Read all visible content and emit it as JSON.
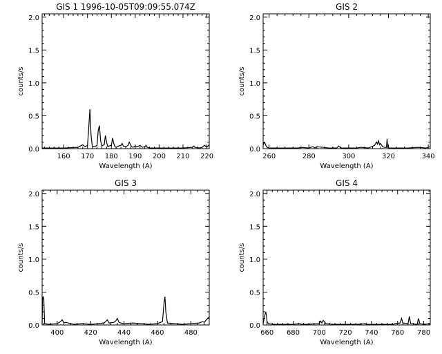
{
  "chart_data": [
    {
      "type": "line",
      "title": "GIS 1 1996-10-05T09:09:55.074Z",
      "xlabel": "Wavelength (A)",
      "ylabel": "counts/s",
      "xlim": [
        151,
        221
      ],
      "ylim": [
        0,
        2.05
      ],
      "xticks": [
        160,
        170,
        180,
        190,
        200,
        210,
        220
      ],
      "yticks": [
        0.0,
        0.5,
        1.0,
        1.5,
        2.0
      ],
      "ytick_labels": [
        "0.0",
        "0.5",
        "1.0",
        "1.5",
        "2.0"
      ],
      "grid": false,
      "series": [
        {
          "x": [
            151,
            160,
            166,
            167,
            168,
            169,
            170,
            170.5,
            171,
            171.5,
            172,
            173,
            174,
            174.5,
            175,
            175.5,
            176,
            177,
            177.5,
            178,
            178.5,
            179,
            180,
            180.5,
            181,
            181.5,
            182,
            183,
            184,
            184.5,
            185,
            186,
            187,
            187.5,
            188,
            188.5,
            189,
            190,
            191,
            192,
            193,
            194,
            194.5,
            195,
            196,
            200,
            205,
            210,
            214,
            214.5,
            215,
            217,
            218,
            219,
            220,
            221
          ],
          "y": [
            0.01,
            0.01,
            0.02,
            0.04,
            0.06,
            0.03,
            0.05,
            0.3,
            0.6,
            0.2,
            0.04,
            0.03,
            0.05,
            0.28,
            0.35,
            0.12,
            0.04,
            0.06,
            0.2,
            0.1,
            0.03,
            0.04,
            0.05,
            0.16,
            0.08,
            0.03,
            0.02,
            0.04,
            0.05,
            0.08,
            0.04,
            0.03,
            0.05,
            0.1,
            0.06,
            0.03,
            0.02,
            0.04,
            0.03,
            0.05,
            0.02,
            0.03,
            0.05,
            0.02,
            0.01,
            0.01,
            0.01,
            0.01,
            0.02,
            0.04,
            0.02,
            0.01,
            0.02,
            0.05,
            0.02,
            0.06
          ]
        }
      ]
    },
    {
      "type": "line",
      "title": "GIS 2",
      "xlabel": "Wavelength (A)",
      "ylabel": "counts/s",
      "xlim": [
        257,
        341
      ],
      "ylim": [
        0,
        2.05
      ],
      "xticks": [
        260,
        280,
        300,
        320,
        340
      ],
      "yticks": [
        0.0,
        0.5,
        1.0,
        1.5,
        2.0
      ],
      "ytick_labels": [
        "0.0",
        "0.5",
        "1.0",
        "1.5",
        "2.0"
      ],
      "grid": false,
      "series": [
        {
          "x": [
            257,
            257.5,
            258,
            258.5,
            259,
            260,
            262,
            270,
            275,
            276,
            280,
            282,
            283,
            284,
            290,
            294,
            295,
            296,
            300,
            304,
            306,
            310,
            313,
            314,
            314.5,
            315,
            315.5,
            316,
            317,
            318,
            319,
            319.3,
            319.6,
            320,
            325,
            330,
            335,
            339,
            340,
            341
          ],
          "y": [
            0.05,
            0.1,
            0.08,
            0.04,
            0.02,
            0.01,
            0.01,
            0.01,
            0.01,
            0.02,
            0.01,
            0.03,
            0.01,
            0.03,
            0.01,
            0.01,
            0.04,
            0.01,
            0.01,
            0.01,
            0.02,
            0.01,
            0.05,
            0.1,
            0.07,
            0.12,
            0.06,
            0.08,
            0.03,
            0.02,
            0.02,
            0.15,
            0.02,
            0.01,
            0.01,
            0.01,
            0.02,
            0.01,
            0.02,
            0.03
          ]
        }
      ]
    },
    {
      "type": "line",
      "title": "GIS 3",
      "xlabel": "Wavelength (A)",
      "ylabel": "counts/s",
      "xlim": [
        391,
        491
      ],
      "ylim": [
        0,
        2.05
      ],
      "xticks": [
        400,
        420,
        440,
        460,
        480
      ],
      "yticks": [
        0.0,
        0.5,
        1.0,
        1.5,
        2.0
      ],
      "ytick_labels": [
        "0.0",
        "0.5",
        "1.0",
        "1.5",
        "2.0"
      ],
      "grid": false,
      "series": [
        {
          "x": [
            391,
            391.3,
            391.6,
            392,
            392.5,
            395,
            400,
            402,
            403,
            404,
            405,
            410,
            415,
            420,
            425,
            428,
            429,
            430,
            431,
            434,
            435,
            436,
            437,
            438,
            440,
            445,
            450,
            455,
            460,
            463,
            464,
            464.5,
            465,
            466,
            470,
            475,
            480,
            485,
            487,
            488,
            489,
            490,
            491
          ],
          "y": [
            0.02,
            0.42,
            0.43,
            0.4,
            0.02,
            0.01,
            0.02,
            0.05,
            0.08,
            0.03,
            0.04,
            0.01,
            0.02,
            0.01,
            0.02,
            0.03,
            0.05,
            0.08,
            0.03,
            0.04,
            0.06,
            0.1,
            0.04,
            0.03,
            0.02,
            0.03,
            0.02,
            0.01,
            0.02,
            0.05,
            0.35,
            0.43,
            0.2,
            0.03,
            0.02,
            0.01,
            0.02,
            0.03,
            0.05,
            0.04,
            0.07,
            0.1,
            0.12
          ]
        }
      ]
    },
    {
      "type": "line",
      "title": "GIS 4",
      "xlabel": "Wavelength (A)",
      "ylabel": "counts/s",
      "xlim": [
        657,
        785
      ],
      "ylim": [
        0,
        2.05
      ],
      "xticks": [
        660,
        680,
        700,
        720,
        740,
        760,
        780
      ],
      "yticks": [
        0.0,
        0.5,
        1.0,
        1.5,
        2.0
      ],
      "ytick_labels": [
        "0.0",
        "0.5",
        "1.0",
        "1.5",
        "2.0"
      ],
      "grid": false,
      "series": [
        {
          "x": [
            657,
            658,
            659,
            659.5,
            660,
            661,
            665,
            670,
            680,
            685,
            686,
            690,
            700,
            701,
            702,
            703,
            704,
            705,
            710,
            720,
            730,
            735,
            736,
            740,
            750,
            757,
            758,
            762,
            763,
            764,
            768,
            769,
            770,
            775,
            776,
            777,
            780,
            785
          ],
          "y": [
            0.02,
            0.12,
            0.2,
            0.15,
            0.05,
            0.02,
            0.01,
            0.01,
            0.01,
            0.02,
            0.01,
            0.01,
            0.02,
            0.06,
            0.03,
            0.07,
            0.05,
            0.02,
            0.01,
            0.01,
            0.01,
            0.02,
            0.01,
            0.01,
            0.01,
            0.01,
            0.02,
            0.03,
            0.1,
            0.03,
            0.02,
            0.13,
            0.02,
            0.01,
            0.1,
            0.02,
            0.01,
            0.02
          ]
        }
      ]
    }
  ]
}
